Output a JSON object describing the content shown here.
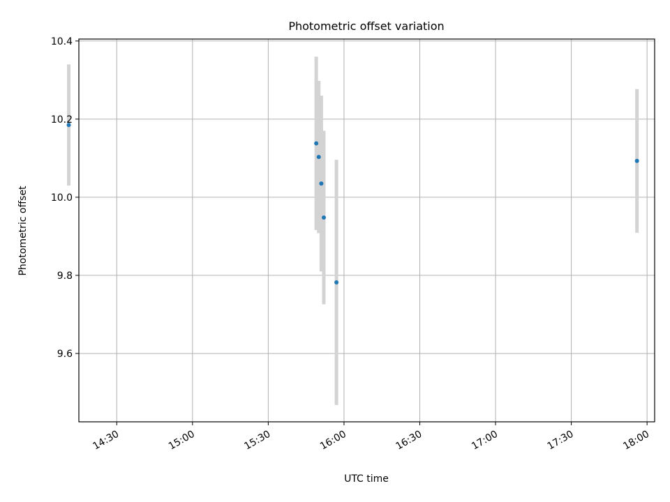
{
  "chart_data": {
    "type": "scatter",
    "title": "Photometric offset variation",
    "xlabel": "UTC time",
    "ylabel": "Photometric offset",
    "xlim": [
      "14:15",
      "18:03"
    ],
    "ylim": [
      9.425,
      10.405
    ],
    "xticks": [
      "14:30",
      "15:00",
      "15:30",
      "16:00",
      "16:30",
      "17:00",
      "17:30",
      "18:00"
    ],
    "yticks": [
      9.6,
      9.8,
      10.0,
      10.2,
      10.4
    ],
    "yticklabels": [
      "9.6",
      "9.8",
      "10.0",
      "10.2",
      "10.4"
    ],
    "grid": true,
    "point_color": "#1f77b4",
    "errorbar_color": "#d3d3d3",
    "points": [
      {
        "x": "14:11",
        "y": 10.185,
        "err": 0.155
      },
      {
        "x": "15:49",
        "y": 10.138,
        "err": 0.222
      },
      {
        "x": "15:50",
        "y": 10.103,
        "err": 0.195
      },
      {
        "x": "15:51",
        "y": 10.035,
        "err": 0.225
      },
      {
        "x": "15:52",
        "y": 9.948,
        "err": 0.222
      },
      {
        "x": "15:57",
        "y": 9.782,
        "err": 0.314
      },
      {
        "x": "17:56",
        "y": 10.093,
        "err": 0.184
      }
    ]
  }
}
